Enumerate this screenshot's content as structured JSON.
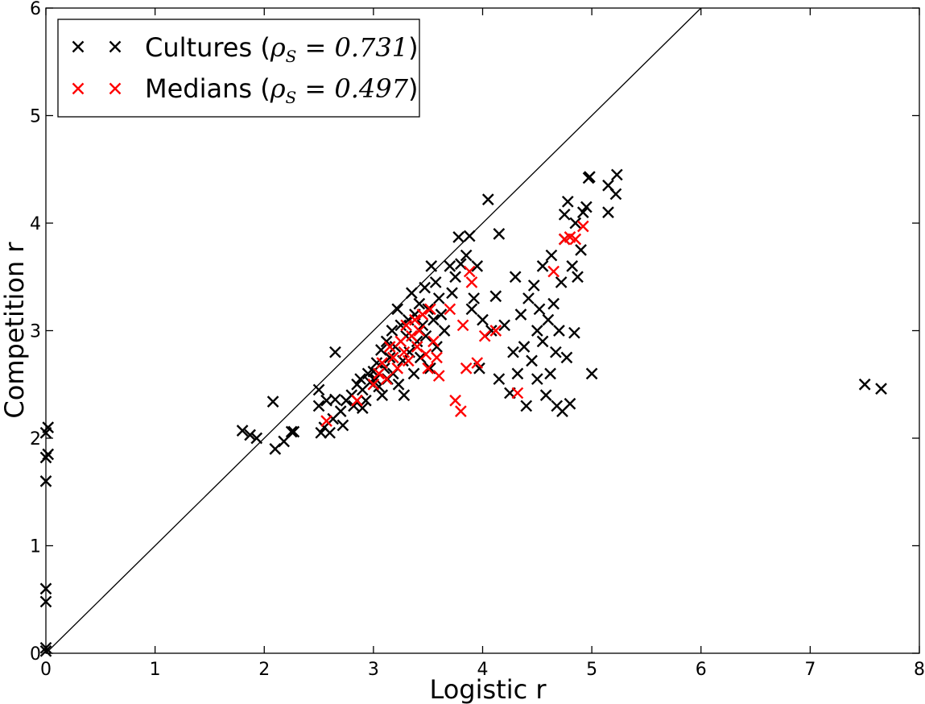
{
  "chart_data": {
    "type": "scatter",
    "xlabel": "Logistic r",
    "ylabel": "Competition r",
    "xlim": [
      0,
      8
    ],
    "ylim": [
      0,
      6
    ],
    "xticks": [
      "0",
      "1",
      "2",
      "3",
      "4",
      "5",
      "6",
      "7",
      "8"
    ],
    "yticks": [
      "0",
      "1",
      "2",
      "3",
      "4",
      "5",
      "6"
    ],
    "grid": false,
    "legend_position": "top-left",
    "reference_line": {
      "from": [
        0,
        0
      ],
      "to": [
        6,
        6
      ],
      "color": "#000000"
    },
    "series": [
      {
        "name": "Cultures",
        "legend_label": "Cultures (",
        "legend_math": "ρ",
        "legend_sub": "S",
        "legend_value": " = 0.731",
        "legend_close": ")",
        "color": "#000000",
        "marker": "x",
        "points": [
          [
            0.0,
            0.02
          ],
          [
            0.0,
            0.05
          ],
          [
            0.0,
            0.48
          ],
          [
            0.0,
            0.6
          ],
          [
            0.0,
            1.6
          ],
          [
            0.0,
            1.82
          ],
          [
            0.02,
            1.85
          ],
          [
            0.0,
            2.05
          ],
          [
            0.02,
            2.1
          ],
          [
            1.8,
            2.07
          ],
          [
            1.87,
            2.03
          ],
          [
            1.93,
            2.0
          ],
          [
            2.08,
            2.34
          ],
          [
            2.1,
            1.9
          ],
          [
            2.18,
            1.97
          ],
          [
            2.25,
            2.06
          ],
          [
            2.27,
            2.06
          ],
          [
            2.5,
            2.45
          ],
          [
            2.5,
            2.3
          ],
          [
            2.52,
            2.05
          ],
          [
            2.55,
            2.1
          ],
          [
            2.57,
            2.35
          ],
          [
            2.6,
            2.05
          ],
          [
            2.63,
            2.18
          ],
          [
            2.65,
            2.36
          ],
          [
            2.65,
            2.8
          ],
          [
            2.7,
            2.25
          ],
          [
            2.72,
            2.12
          ],
          [
            2.75,
            2.35
          ],
          [
            2.8,
            2.4
          ],
          [
            2.82,
            2.3
          ],
          [
            2.85,
            2.5
          ],
          [
            2.88,
            2.55
          ],
          [
            2.9,
            2.45
          ],
          [
            2.9,
            2.28
          ],
          [
            2.93,
            2.35
          ],
          [
            2.95,
            2.6
          ],
          [
            2.97,
            2.52
          ],
          [
            3.0,
            2.62
          ],
          [
            3.02,
            2.55
          ],
          [
            3.03,
            2.7
          ],
          [
            3.05,
            2.48
          ],
          [
            3.07,
            2.82
          ],
          [
            3.08,
            2.4
          ],
          [
            3.1,
            2.65
          ],
          [
            3.12,
            2.9
          ],
          [
            3.13,
            2.55
          ],
          [
            3.15,
            2.75
          ],
          [
            3.17,
            3.0
          ],
          [
            3.18,
            2.6
          ],
          [
            3.2,
            2.85
          ],
          [
            3.22,
            3.2
          ],
          [
            3.23,
            2.5
          ],
          [
            3.25,
            3.05
          ],
          [
            3.27,
            2.72
          ],
          [
            3.28,
            2.4
          ],
          [
            3.3,
            2.95
          ],
          [
            3.32,
            3.1
          ],
          [
            3.33,
            2.8
          ],
          [
            3.35,
            3.35
          ],
          [
            3.37,
            2.6
          ],
          [
            3.38,
            3.15
          ],
          [
            3.4,
            2.9
          ],
          [
            3.42,
            3.25
          ],
          [
            3.43,
            2.75
          ],
          [
            3.45,
            3.05
          ],
          [
            3.47,
            3.4
          ],
          [
            3.48,
            2.95
          ],
          [
            3.5,
            3.2
          ],
          [
            3.52,
            2.65
          ],
          [
            3.53,
            3.6
          ],
          [
            3.55,
            3.1
          ],
          [
            3.57,
            3.45
          ],
          [
            3.58,
            2.85
          ],
          [
            3.6,
            3.3
          ],
          [
            3.62,
            3.15
          ],
          [
            3.65,
            3.0
          ],
          [
            3.7,
            3.6
          ],
          [
            3.72,
            3.35
          ],
          [
            3.75,
            3.5
          ],
          [
            3.78,
            3.87
          ],
          [
            3.8,
            3.62
          ],
          [
            3.85,
            3.7
          ],
          [
            3.88,
            3.88
          ],
          [
            3.9,
            3.2
          ],
          [
            3.92,
            3.3
          ],
          [
            3.95,
            3.6
          ],
          [
            3.97,
            2.65
          ],
          [
            4.0,
            3.1
          ],
          [
            4.05,
            4.22
          ],
          [
            4.08,
            3.0
          ],
          [
            4.12,
            3.32
          ],
          [
            4.15,
            3.9
          ],
          [
            4.15,
            2.55
          ],
          [
            4.2,
            3.05
          ],
          [
            4.25,
            2.42
          ],
          [
            4.28,
            2.8
          ],
          [
            4.3,
            3.5
          ],
          [
            4.32,
            2.6
          ],
          [
            4.35,
            3.15
          ],
          [
            4.38,
            2.85
          ],
          [
            4.4,
            2.3
          ],
          [
            4.42,
            3.3
          ],
          [
            4.45,
            2.72
          ],
          [
            4.47,
            3.42
          ],
          [
            4.5,
            3.0
          ],
          [
            4.5,
            2.55
          ],
          [
            4.52,
            3.2
          ],
          [
            4.55,
            2.9
          ],
          [
            4.55,
            3.6
          ],
          [
            4.58,
            2.4
          ],
          [
            4.6,
            3.1
          ],
          [
            4.62,
            2.6
          ],
          [
            4.63,
            3.7
          ],
          [
            4.65,
            3.25
          ],
          [
            4.67,
            2.8
          ],
          [
            4.68,
            2.3
          ],
          [
            4.7,
            3.0
          ],
          [
            4.72,
            3.45
          ],
          [
            4.73,
            2.25
          ],
          [
            4.75,
            3.85
          ],
          [
            4.75,
            4.08
          ],
          [
            4.77,
            2.75
          ],
          [
            4.78,
            4.2
          ],
          [
            4.8,
            2.32
          ],
          [
            4.82,
            3.6
          ],
          [
            4.84,
            2.98
          ],
          [
            4.85,
            4.0
          ],
          [
            4.87,
            3.5
          ],
          [
            4.9,
            3.75
          ],
          [
            4.92,
            4.1
          ],
          [
            4.95,
            4.15
          ],
          [
            4.97,
            4.42
          ],
          [
            4.98,
            4.43
          ],
          [
            5.0,
            2.6
          ],
          [
            5.15,
            4.35
          ],
          [
            5.15,
            4.1
          ],
          [
            5.22,
            4.27
          ],
          [
            5.23,
            4.45
          ],
          [
            7.5,
            2.5
          ],
          [
            7.65,
            2.46
          ]
        ]
      },
      {
        "name": "Medians",
        "legend_label": "Medians (",
        "legend_math": "ρ",
        "legend_sub": "S",
        "legend_value": " = 0.497",
        "legend_close": ")",
        "color": "#ff0000",
        "marker": "x",
        "points": [
          [
            2.57,
            2.16
          ],
          [
            2.85,
            2.35
          ],
          [
            3.0,
            2.5
          ],
          [
            3.05,
            2.6
          ],
          [
            3.08,
            2.7
          ],
          [
            3.12,
            2.55
          ],
          [
            3.15,
            2.85
          ],
          [
            3.18,
            2.75
          ],
          [
            3.22,
            2.65
          ],
          [
            3.25,
            2.9
          ],
          [
            3.28,
            2.8
          ],
          [
            3.3,
            3.05
          ],
          [
            3.32,
            2.72
          ],
          [
            3.35,
            2.95
          ],
          [
            3.38,
            3.1
          ],
          [
            3.4,
            2.85
          ],
          [
            3.42,
            3.0
          ],
          [
            3.45,
            3.15
          ],
          [
            3.48,
            2.78
          ],
          [
            3.5,
            2.65
          ],
          [
            3.52,
            3.2
          ],
          [
            3.55,
            2.9
          ],
          [
            3.58,
            2.75
          ],
          [
            3.6,
            2.58
          ],
          [
            3.7,
            3.2
          ],
          [
            3.75,
            2.35
          ],
          [
            3.8,
            2.25
          ],
          [
            3.82,
            3.05
          ],
          [
            3.85,
            2.65
          ],
          [
            3.88,
            3.55
          ],
          [
            3.9,
            3.45
          ],
          [
            3.95,
            2.7
          ],
          [
            4.02,
            2.95
          ],
          [
            4.12,
            3.0
          ],
          [
            4.32,
            2.42
          ],
          [
            4.65,
            3.55
          ],
          [
            4.75,
            3.85
          ],
          [
            4.8,
            3.87
          ],
          [
            4.85,
            3.85
          ],
          [
            4.92,
            3.97
          ]
        ]
      }
    ]
  }
}
